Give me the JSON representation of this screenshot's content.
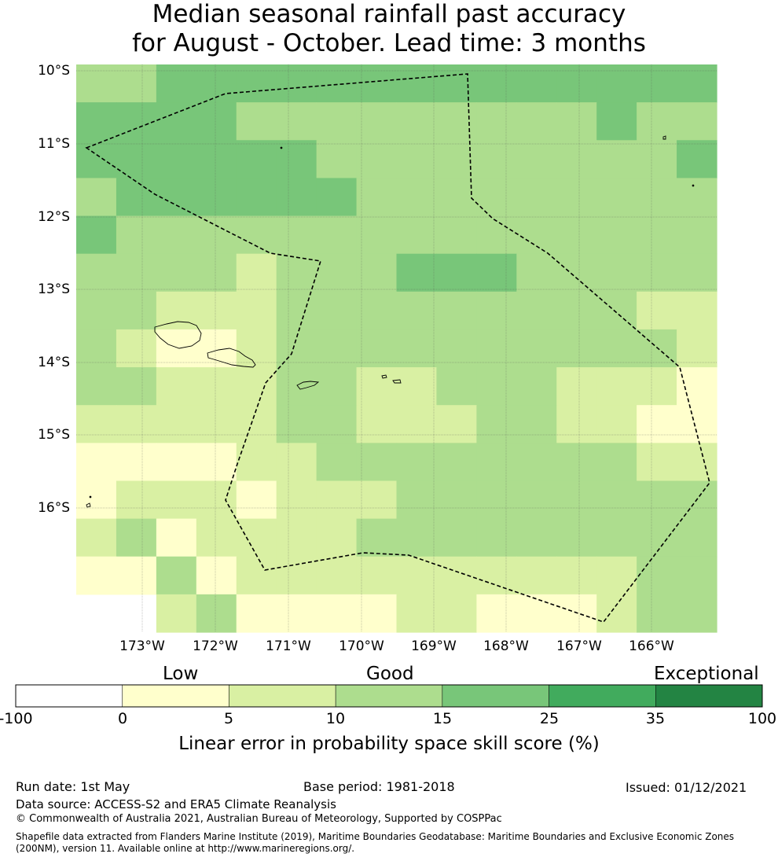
{
  "title_line1": "Median seasonal rainfall past accuracy",
  "title_line2": "for August - October. Lead time: 3 months",
  "map": {
    "lat_ticks": [
      "10°S",
      "11°S",
      "12°S",
      "13°S",
      "14°S",
      "15°S",
      "16°S"
    ],
    "lon_ticks": [
      "173°W",
      "172°W",
      "171°W",
      "170°W",
      "169°W",
      "168°W",
      "167°W",
      "166°W"
    ],
    "grid_cell_classes": [
      [
        3,
        3,
        4,
        4,
        4,
        4,
        4,
        4,
        4,
        4,
        4,
        4,
        4,
        4,
        4,
        4
      ],
      [
        4,
        4,
        4,
        4,
        3,
        3,
        3,
        3,
        3,
        3,
        3,
        3,
        3,
        4,
        3,
        3
      ],
      [
        4,
        4,
        4,
        4,
        4,
        4,
        3,
        3,
        3,
        3,
        3,
        3,
        3,
        3,
        3,
        4
      ],
      [
        3,
        4,
        4,
        4,
        4,
        4,
        4,
        3,
        3,
        3,
        3,
        3,
        3,
        3,
        3,
        3
      ],
      [
        4,
        3,
        3,
        3,
        3,
        3,
        3,
        3,
        3,
        3,
        3,
        3,
        3,
        3,
        3,
        3
      ],
      [
        3,
        3,
        3,
        3,
        2,
        3,
        3,
        3,
        4,
        4,
        4,
        3,
        3,
        3,
        3,
        3
      ],
      [
        3,
        3,
        2,
        2,
        2,
        3,
        3,
        3,
        3,
        3,
        3,
        3,
        3,
        3,
        2,
        2
      ],
      [
        3,
        2,
        1,
        1,
        2,
        3,
        3,
        3,
        3,
        3,
        3,
        3,
        3,
        3,
        3,
        2
      ],
      [
        3,
        3,
        2,
        2,
        2,
        3,
        3,
        2,
        2,
        3,
        3,
        3,
        2,
        2,
        2,
        1
      ],
      [
        2,
        2,
        2,
        2,
        2,
        3,
        3,
        2,
        2,
        2,
        3,
        3,
        2,
        2,
        1,
        1
      ],
      [
        1,
        1,
        1,
        1,
        2,
        2,
        3,
        3,
        3,
        3,
        3,
        3,
        3,
        3,
        2,
        2
      ],
      [
        1,
        2,
        2,
        2,
        1,
        2,
        2,
        2,
        3,
        3,
        3,
        3,
        3,
        3,
        3,
        3
      ],
      [
        2,
        3,
        1,
        2,
        2,
        2,
        2,
        3,
        3,
        3,
        3,
        3,
        3,
        3,
        3,
        3
      ],
      [
        1,
        1,
        3,
        1,
        2,
        2,
        2,
        2,
        2,
        2,
        2,
        2,
        2,
        2,
        3,
        3
      ],
      [
        null,
        null,
        2,
        3,
        1,
        1,
        1,
        1,
        2,
        2,
        1,
        1,
        1,
        2,
        3,
        3
      ]
    ]
  },
  "legend": {
    "categories": [
      "Low",
      "Good",
      "Exceptional"
    ],
    "ticks": [
      "-100",
      "0",
      "5",
      "10",
      "15",
      "25",
      "35",
      "100"
    ],
    "colors": [
      "#ffffff",
      "#ffffcc",
      "#d9f0a3",
      "#addd8e",
      "#78c679",
      "#41ab5d",
      "#238443"
    ],
    "label": "Linear error in probability space skill score (%)"
  },
  "footer": {
    "run_date": "Run date: 1st May",
    "base_period": "Base period: 1981-2018",
    "issued": "Issued: 01/12/2021",
    "data_source": "Data source: ACCESS-S2 and ERA5 Climate Reanalysis",
    "copyright": "© Commonwealth of Australia 2021, Australian Bureau of Meteorology, Supported by COSPPac",
    "shapefile_line1": "Shapefile data extracted from Flanders Marine Institute (2019), Maritime Boundaries Geodatabase: Maritime Boundaries and Exclusive Economic Zones",
    "shapefile_line2": "(200NM), version 11. Available online at http://www.marineregions.org/."
  }
}
